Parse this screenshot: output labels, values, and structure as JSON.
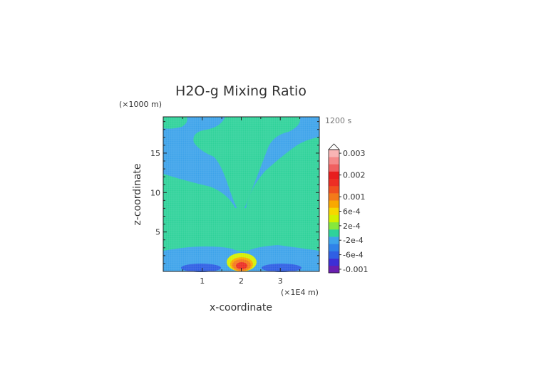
{
  "chart_data": {
    "type": "heatmap",
    "title": "H2O-g Mixing Ratio",
    "xlabel": "x-coordinate",
    "ylabel": "z-coordinate",
    "x_unit": "(×1E4 m)",
    "y_unit": "(×1000 m)",
    "time_label": "1200 s",
    "xlim": [
      0,
      4
    ],
    "ylim": [
      0,
      19.6
    ],
    "x_ticks": [
      1,
      2,
      3
    ],
    "y_ticks": [
      5,
      10,
      15
    ],
    "colorbar": {
      "labels": [
        {
          "value": 0.003,
          "text": "0.003"
        },
        {
          "value": 0.002,
          "text": "0.002"
        },
        {
          "value": 0.001,
          "text": "0.001"
        },
        {
          "value": 0.0006,
          "text": "6e-4"
        },
        {
          "value": 0.0002,
          "text": "2e-4"
        },
        {
          "value": -0.0002,
          "text": "-2e-4"
        },
        {
          "value": -0.0006,
          "text": "-6e-4"
        },
        {
          "value": -0.001,
          "text": "-0.001"
        }
      ],
      "levels": [
        {
          "value": -0.001,
          "color": "#6a1fb0"
        },
        {
          "value": -0.0008,
          "color": "#3d2fd6"
        },
        {
          "value": -0.0006,
          "color": "#2f5fe4"
        },
        {
          "value": -0.0004,
          "color": "#2f82e8"
        },
        {
          "value": -0.0002,
          "color": "#3da3ea"
        },
        {
          "value": 0.0,
          "color": "#2fd29a"
        },
        {
          "value": 0.0002,
          "color": "#86e83c"
        },
        {
          "value": 0.0004,
          "color": "#d4f000"
        },
        {
          "value": 0.0006,
          "color": "#f6d800"
        },
        {
          "value": 0.0008,
          "color": "#f9a800"
        },
        {
          "value": 0.001,
          "color": "#f47a1a"
        },
        {
          "value": 0.0013,
          "color": "#f05020"
        },
        {
          "value": 0.0017,
          "color": "#ec2e24"
        },
        {
          "value": 0.002,
          "color": "#e81e1e"
        },
        {
          "value": 0.0023,
          "color": "#f06060"
        },
        {
          "value": 0.0027,
          "color": "#f58a8a"
        },
        {
          "value": 0.003,
          "color": "#f9b4b4"
        }
      ]
    },
    "regions": [
      {
        "level": -0.0002,
        "desc": "background"
      },
      {
        "level": 0.0,
        "desc": "upper central plume"
      },
      {
        "level": 0.0,
        "desc": "left wing"
      },
      {
        "level": 0.0,
        "desc": "right wing"
      },
      {
        "level": 0.0,
        "desc": "lower band"
      },
      {
        "level": -0.0006,
        "desc": "left low blob"
      },
      {
        "level": -0.0006,
        "desc": "right low blob"
      },
      {
        "level": 0.0004,
        "desc": "central maximum"
      },
      {
        "level": 0.0008,
        "desc": "central maximum"
      },
      {
        "level": 0.001,
        "desc": "central maximum"
      },
      {
        "level": 0.0017,
        "desc": "central maximum core"
      }
    ]
  }
}
